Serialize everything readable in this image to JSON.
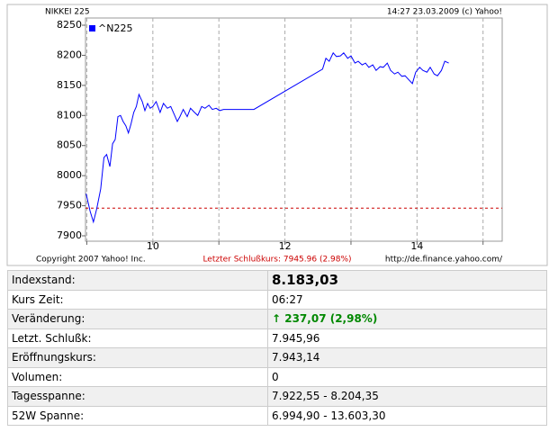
{
  "chart_data": {
    "type": "line",
    "title": "NIKKEI 225",
    "subtitle": "14:27 23.03.2009 (c) Yahoo!",
    "series": [
      {
        "name": "^N225",
        "color": "#0000ff",
        "x": [
          8.99,
          9.05,
          9.1,
          9.15,
          9.21,
          9.26,
          9.3,
          9.35,
          9.39,
          9.43,
          9.47,
          9.51,
          9.55,
          9.59,
          9.63,
          9.67,
          9.71,
          9.75,
          9.79,
          9.84,
          9.88,
          9.92,
          9.96,
          10.0,
          10.05,
          10.11,
          10.16,
          10.22,
          10.27,
          10.33,
          10.37,
          10.41,
          10.46,
          10.52,
          10.57,
          10.63,
          10.68,
          10.74,
          10.79,
          10.85,
          10.9,
          10.96,
          11.01,
          11.07,
          11.53,
          12.57,
          12.62,
          12.67,
          12.73,
          12.78,
          12.84,
          12.89,
          12.95,
          13.0,
          13.06,
          13.11,
          13.17,
          13.22,
          13.27,
          13.33,
          13.38,
          13.44,
          13.49,
          13.55,
          13.6,
          13.66,
          13.71,
          13.77,
          13.82,
          13.87,
          13.93,
          13.98,
          14.04,
          14.09,
          14.15,
          14.2,
          14.26,
          14.31,
          14.37,
          14.42,
          14.48
        ],
        "values": [
          7970,
          7941,
          7923,
          7945,
          7978,
          8030,
          8035,
          8015,
          8053,
          8060,
          8098,
          8100,
          8090,
          8083,
          8071,
          8086,
          8105,
          8115,
          8135,
          8123,
          8108,
          8120,
          8112,
          8115,
          8123,
          8105,
          8120,
          8112,
          8115,
          8100,
          8090,
          8098,
          8110,
          8098,
          8112,
          8105,
          8100,
          8115,
          8112,
          8117,
          8110,
          8112,
          8108,
          8110,
          8110,
          8177,
          8195,
          8190,
          8204,
          8198,
          8199,
          8204,
          8195,
          8199,
          8187,
          8190,
          8184,
          8187,
          8180,
          8184,
          8175,
          8181,
          8180,
          8187,
          8175,
          8169,
          8172,
          8165,
          8166,
          8160,
          8153,
          8172,
          8180,
          8175,
          8172,
          8180,
          8169,
          8166,
          8175,
          8190,
          8187
        ]
      }
    ],
    "xlim": [
      8.98,
      15.29
    ],
    "xticks": [
      10,
      12,
      14
    ],
    "xminorticks": [
      9,
      11,
      13,
      15
    ],
    "ylim": [
      7891,
      8262
    ],
    "yticks": [
      7900,
      7950,
      8000,
      8050,
      8100,
      8150,
      8200,
      8250
    ],
    "reference_line": {
      "value": 7945.96,
      "color": "#cc0000"
    },
    "annotation": "Letzter Schlußkurs: 7945.96 (2.98%)",
    "copyright": "Copyright 2007 Yahoo! Inc.",
    "source": "http://de.finance.yahoo.com/"
  },
  "table": {
    "rows": [
      [
        "Indexstand:",
        "8.183,03"
      ],
      [
        "Kurs Zeit:",
        "06:27"
      ],
      [
        "Veränderung:",
        "237,07 (2,98%)"
      ],
      [
        "Letzt. Schlußk:",
        "7.945,96"
      ],
      [
        "Eröffnungskurs:",
        "7.943,14"
      ],
      [
        "Volumen:",
        "0"
      ],
      [
        "Tagesspanne:",
        "7.922,55 - 8.204,35"
      ],
      [
        "52W Spanne:",
        "6.994,90 - 13.603,30"
      ]
    ]
  }
}
